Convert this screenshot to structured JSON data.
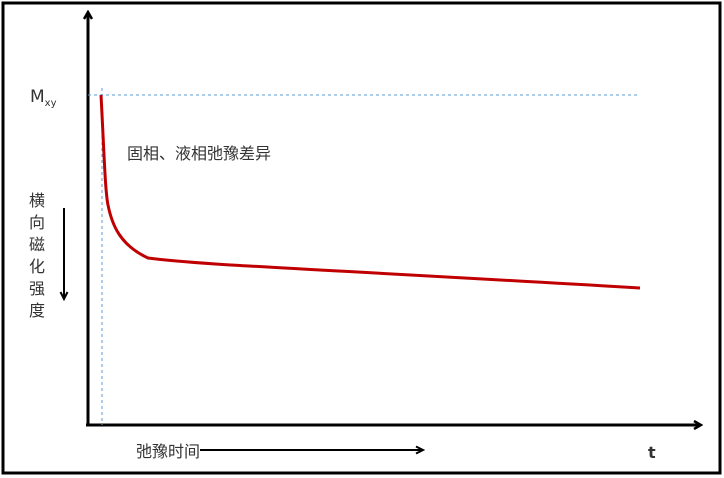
{
  "diagram": {
    "y_axis_marker": "M",
    "y_axis_marker_subscript": "xy",
    "annotation": "固相、液相弛豫差异",
    "y_label_chars": [
      "横",
      "向",
      "磁",
      "化",
      "强",
      "度"
    ],
    "x_label": "弛豫时间",
    "x_axis_symbol": "t",
    "colors": {
      "curve": "#c00000",
      "guide": "#5b9bd5",
      "axis": "#000000"
    }
  }
}
